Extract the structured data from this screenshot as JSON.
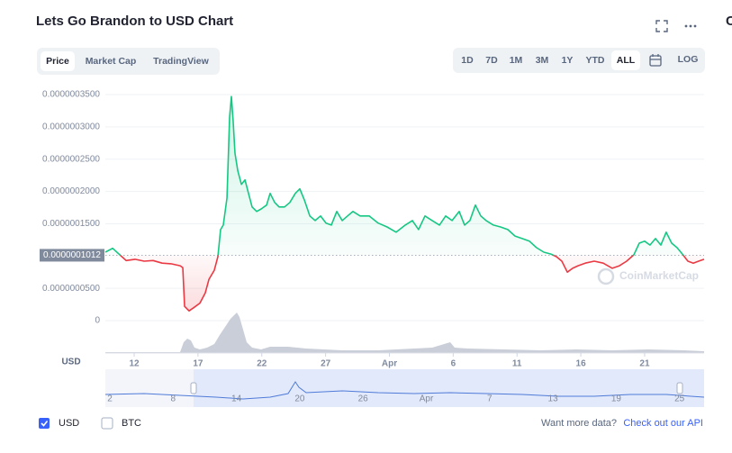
{
  "header": {
    "title": "Lets Go Brandon to USD Chart",
    "side_heading": "C"
  },
  "tabs": [
    "Price",
    "Market Cap",
    "TradingView"
  ],
  "ranges": [
    "1D",
    "7D",
    "1M",
    "3M",
    "1Y",
    "YTD",
    "ALL"
  ],
  "scale_button": "LOG",
  "chart_data": {
    "type": "line",
    "y_axis_label": "USD",
    "watermark": "CoinMarketCap",
    "x": [
      9.74,
      10.31,
      10.87,
      11.37,
      12.07,
      12.78,
      13.48,
      14.19,
      14.89,
      15.6,
      15.81,
      15.95,
      16.3,
      16.66,
      17.15,
      17.57,
      17.86,
      18.28,
      18.56,
      18.77,
      18.98,
      19.27,
      19.48,
      19.62,
      19.76,
      19.9,
      20.12,
      20.4,
      20.68,
      20.96,
      21.24,
      21.6,
      21.95,
      22.38,
      22.65,
      23.01,
      23.36,
      23.78,
      24.2,
      24.63,
      24.98,
      25.33,
      25.76,
      26.18,
      26.6,
      27.03,
      27.45,
      27.87,
      28.3,
      28.72,
      29.14,
      29.71,
      30.41,
      31.12,
      31.82,
      32.53,
      33.24,
      33.8,
      34.29,
      34.79,
      35.35,
      35.92,
      36.41,
      36.91,
      37.47,
      37.89,
      38.31,
      38.74,
      39.16,
      39.58,
      40.15,
      40.71,
      41.28,
      41.84,
      42.41,
      42.97,
      43.53,
      44.1,
      44.66,
      45.09,
      45.51,
      45.94,
      46.36,
      46.78,
      47.35,
      48.05,
      48.76,
      49.46,
      50.03,
      50.59,
      51.16,
      51.58,
      52,
      52.42,
      52.85,
      53.27,
      53.69,
      54.12,
      54.54,
      54.96,
      55.39,
      55.81,
      56.23,
      56.66
    ],
    "series": [
      {
        "name": "USD",
        "color": "#16c784",
        "down_color": "#ea3943",
        "values": [
          1.06e-07,
          1.12e-07,
          1.02e-07,
          9.3e-08,
          9.5e-08,
          9.2e-08,
          9.3e-08,
          8.9e-08,
          8.8e-08,
          8.5e-08,
          8.2e-08,
          2.2e-08,
          1.5e-08,
          2e-08,
          2.7e-08,
          4.3e-08,
          6.4e-08,
          7.8e-08,
          9.9e-08,
          1.41e-07,
          1.48e-07,
          1.9e-07,
          3.15e-07,
          3.47e-07,
          3.08e-07,
          2.59e-07,
          2.32e-07,
          2.11e-07,
          2.18e-07,
          1.97e-07,
          1.76e-07,
          1.69e-07,
          1.73e-07,
          1.79e-07,
          1.97e-07,
          1.83e-07,
          1.76e-07,
          1.76e-07,
          1.83e-07,
          1.97e-07,
          2.04e-07,
          1.87e-07,
          1.62e-07,
          1.55e-07,
          1.62e-07,
          1.51e-07,
          1.48e-07,
          1.69e-07,
          1.55e-07,
          1.62e-07,
          1.69e-07,
          1.62e-07,
          1.62e-07,
          1.51e-07,
          1.45e-07,
          1.37e-07,
          1.48e-07,
          1.55e-07,
          1.41e-07,
          1.62e-07,
          1.55e-07,
          1.48e-07,
          1.62e-07,
          1.55e-07,
          1.69e-07,
          1.48e-07,
          1.55e-07,
          1.79e-07,
          1.62e-07,
          1.55e-07,
          1.48e-07,
          1.45e-07,
          1.41e-07,
          1.31e-07,
          1.27e-07,
          1.23e-07,
          1.13e-07,
          1.06e-07,
          1.03e-07,
          9.9e-08,
          9.2e-08,
          7.5e-08,
          8.1e-08,
          8.5e-08,
          8.9e-08,
          9.2e-08,
          8.9e-08,
          8.1e-08,
          8.5e-08,
          9.2e-08,
          1.02e-07,
          1.2e-07,
          1.23e-07,
          1.17e-07,
          1.27e-07,
          1.17e-07,
          1.37e-07,
          1.2e-07,
          1.13e-07,
          1.03e-07,
          9.2e-08,
          8.9e-08,
          9.2e-08,
          9.5e-08
        ]
      }
    ],
    "current_price": {
      "value": 1.012e-07,
      "label": "0.0000001012"
    },
    "xlim": [
      9.74,
      56.66
    ],
    "xticks": [
      12,
      17,
      22,
      27,
      {
        "value": 32,
        "label": "Apr"
      },
      {
        "value": 37,
        "label": "6"
      },
      {
        "value": 42,
        "label": "11"
      },
      {
        "value": 47,
        "label": "16"
      },
      {
        "value": 52,
        "label": "21"
      }
    ],
    "ylim": [
      -5.02e-08,
      3.64e-07
    ],
    "yticks": [
      0,
      {
        "value": 5e-08,
        "label": "0.0000000500"
      },
      {
        "value": 1.5e-07,
        "label": "0.0000001500"
      },
      {
        "value": 2e-07,
        "label": "0.0000002000"
      },
      {
        "value": 2.5e-07,
        "label": "0.0000002500"
      },
      {
        "value": 3e-07,
        "label": "0.0000003000"
      },
      {
        "value": 3.5e-07,
        "label": "0.0000003500"
      }
    ],
    "grid": true
  },
  "navigator": {
    "ticks": [
      "2",
      "8",
      "14",
      "20",
      "26",
      "Apr",
      "7",
      "13",
      "19",
      "25"
    ]
  },
  "legend": {
    "checked": "USD",
    "unchecked": "BTC"
  },
  "footer": {
    "prompt": "Want more data?",
    "link": "Check out our API"
  }
}
